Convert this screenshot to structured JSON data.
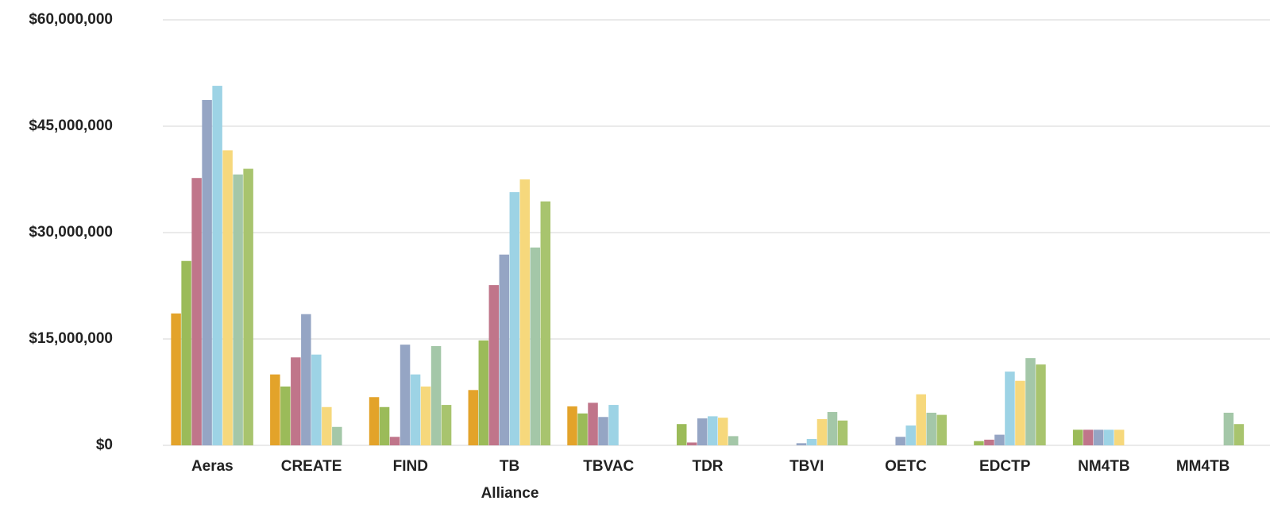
{
  "chart_data": {
    "type": "bar",
    "x_label": "Alliance",
    "categories": [
      "Aeras",
      "CREATE",
      "FIND",
      "TB",
      "TBVAC",
      "TDR",
      "TBVI",
      "OETC",
      "EDCTP",
      "NM4TB",
      "MM4TB"
    ],
    "series": [
      {
        "color": "#e3a32a",
        "values": [
          18600000,
          10000000,
          6800000,
          7800000,
          5500000,
          null,
          null,
          null,
          null,
          null,
          null
        ]
      },
      {
        "color": "#9bbb59",
        "values": [
          26000000,
          8300000,
          5400000,
          14800000,
          4500000,
          3000000,
          null,
          null,
          600000,
          2200000,
          null
        ]
      },
      {
        "color": "#c0758a",
        "values": [
          37700000,
          12400000,
          1200000,
          22600000,
          6000000,
          400000,
          null,
          null,
          800000,
          2200000,
          null
        ]
      },
      {
        "color": "#95a5c4",
        "values": [
          48700000,
          18500000,
          14200000,
          26900000,
          4000000,
          3800000,
          300000,
          1200000,
          1500000,
          2200000,
          null
        ]
      },
      {
        "color": "#9dd3e5",
        "values": [
          50700000,
          12800000,
          10000000,
          35700000,
          5700000,
          4100000,
          900000,
          2800000,
          10400000,
          2200000,
          null
        ]
      },
      {
        "color": "#f6d87c",
        "values": [
          41600000,
          5400000,
          8300000,
          37500000,
          null,
          3900000,
          3700000,
          7200000,
          9100000,
          2200000,
          null
        ]
      },
      {
        "color": "#a4c7a8",
        "values": [
          38200000,
          2600000,
          14000000,
          27900000,
          null,
          1300000,
          4700000,
          4600000,
          12300000,
          null,
          4600000
        ]
      },
      {
        "color": "#a8c46e",
        "values": [
          39000000,
          null,
          5700000,
          34400000,
          null,
          null,
          3500000,
          4300000,
          11400000,
          null,
          3000000
        ]
      }
    ],
    "ylim": [
      0,
      60000000
    ],
    "yticks": [
      {
        "value": 0,
        "label": "$0"
      },
      {
        "value": 15000000,
        "label": "$15,000,000"
      },
      {
        "value": 30000000,
        "label": "$30,000,000"
      },
      {
        "value": 45000000,
        "label": "$45,000,000"
      },
      {
        "value": 60000000,
        "label": "$60,000,000"
      }
    ],
    "grid": true
  }
}
